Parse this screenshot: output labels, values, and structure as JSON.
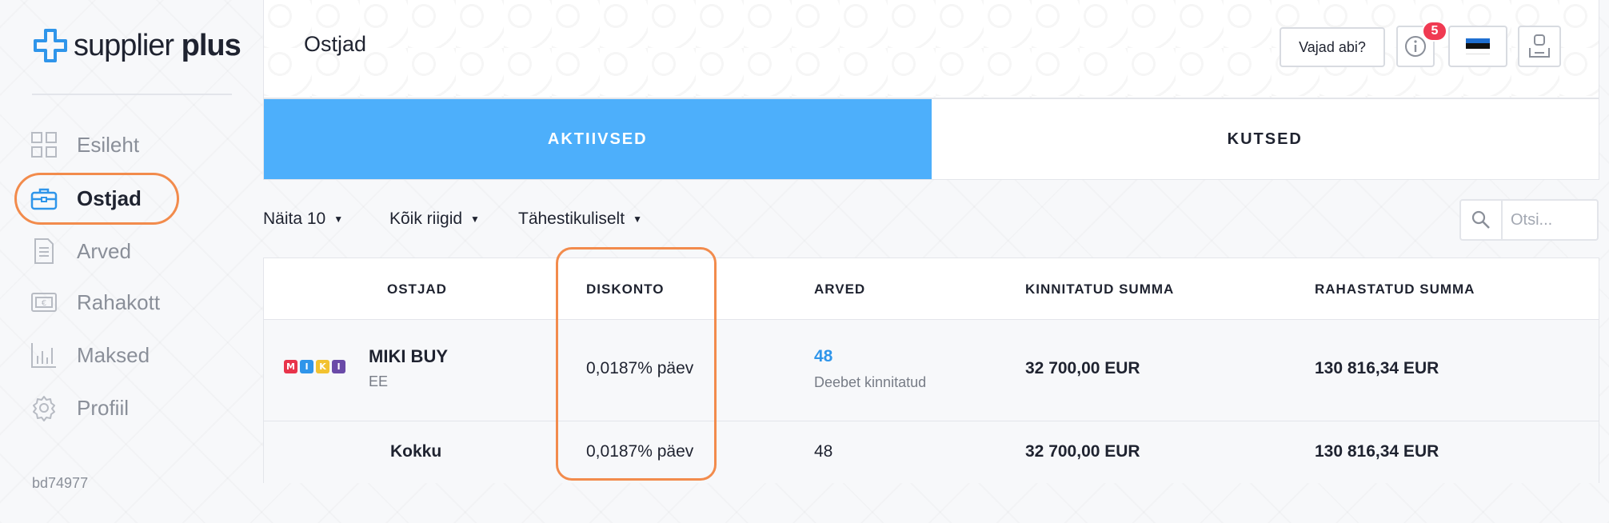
{
  "app": {
    "logo_left": "supplier",
    "logo_right": "plus",
    "build_id": "bd74977"
  },
  "sidebar": {
    "items": [
      {
        "label": "Esileht",
        "icon": "dashboard-icon",
        "active": false
      },
      {
        "label": "Ostjad",
        "icon": "briefcase-icon",
        "active": true
      },
      {
        "label": "Arved",
        "icon": "document-icon",
        "active": false
      },
      {
        "label": "Rahakott",
        "icon": "wallet-icon",
        "active": false
      },
      {
        "label": "Maksed",
        "icon": "bar-chart-icon",
        "active": false
      },
      {
        "label": "Profiil",
        "icon": "gear-icon",
        "active": false
      }
    ]
  },
  "header": {
    "title": "Ostjad",
    "help_label": "Vajad abi?",
    "notification_count": "5",
    "language_flag": "estonian-flag-icon"
  },
  "tabs": [
    {
      "label": "AKTIIVSED",
      "active": true
    },
    {
      "label": "KUTSED",
      "active": false
    }
  ],
  "filters": {
    "page_size": "Näita 10",
    "country": "Kõik riigid",
    "sort": "Tähestikuliselt"
  },
  "search": {
    "placeholder": "Otsi..."
  },
  "table": {
    "columns": [
      "OSTJAD",
      "DISKONTO",
      "ARVED",
      "KINNITATUD SUMMA",
      "RAHASTATUD SUMMA"
    ],
    "rows": [
      {
        "buyer": "MIKI BUY",
        "buyer_logo_letters": [
          "M",
          "I",
          "K",
          "I"
        ],
        "country": "EE",
        "discount": "0,0187% päev",
        "invoices": "48",
        "invoices_status": "Deebet kinnitatud",
        "confirmed_sum": "32 700,00 EUR",
        "funded_sum": "130 816,34 EUR"
      }
    ],
    "total": {
      "label": "Kokku",
      "discount": "0,0187% päev",
      "invoices": "48",
      "confirmed_sum": "32 700,00 EUR",
      "funded_sum": "130 816,34 EUR"
    }
  },
  "colors": {
    "accent": "#4daffb",
    "highlight": "#f28b4c",
    "badge": "#f03a52",
    "link": "#2f95ea"
  }
}
